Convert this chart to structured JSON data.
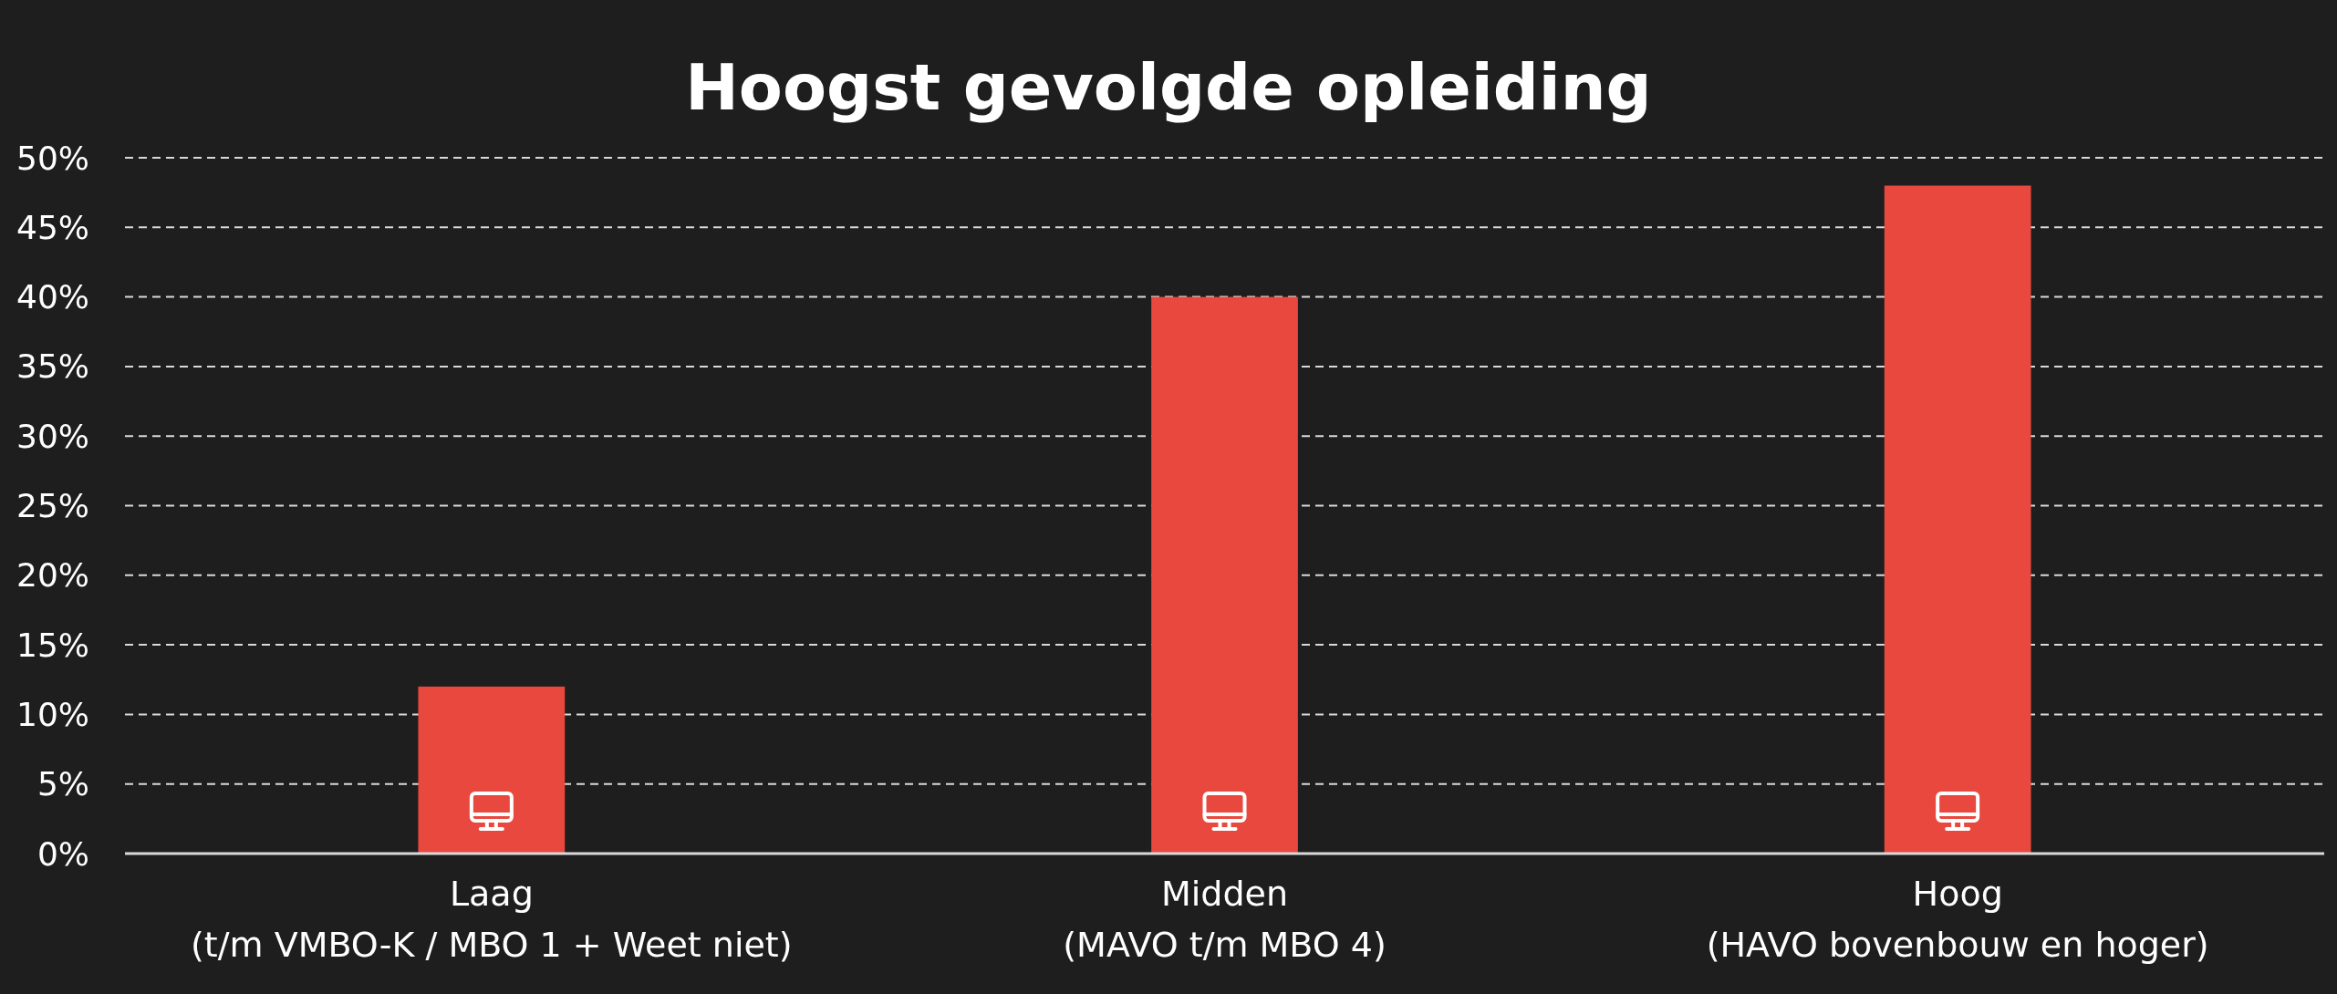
{
  "chart_data": {
    "type": "bar",
    "title": "Hoogst gevolgde opleiding",
    "categories": [
      "Laag\n(t/m VMBO-K / MBO 1 + Weet niet)",
      "Midden\n(MAVO t/m MBO 4)",
      "Hoog\n(HAVO bovenbouw en hoger)"
    ],
    "values": [
      12,
      40,
      48
    ],
    "color": "#e8483e",
    "ylim": [
      0,
      50
    ],
    "yticks": [
      {
        "value": 0,
        "label": "0%"
      },
      {
        "value": 5,
        "label": "5%"
      },
      {
        "value": 10,
        "label": "10%"
      },
      {
        "value": 15,
        "label": "15%"
      },
      {
        "value": 20,
        "label": "20%"
      },
      {
        "value": 25,
        "label": "25%"
      },
      {
        "value": 30,
        "label": "30%"
      },
      {
        "value": 35,
        "label": "35%"
      },
      {
        "value": 40,
        "label": "40%"
      },
      {
        "value": 45,
        "label": "45%"
      },
      {
        "value": 50,
        "label": "50%"
      }
    ],
    "grid": "y"
  }
}
